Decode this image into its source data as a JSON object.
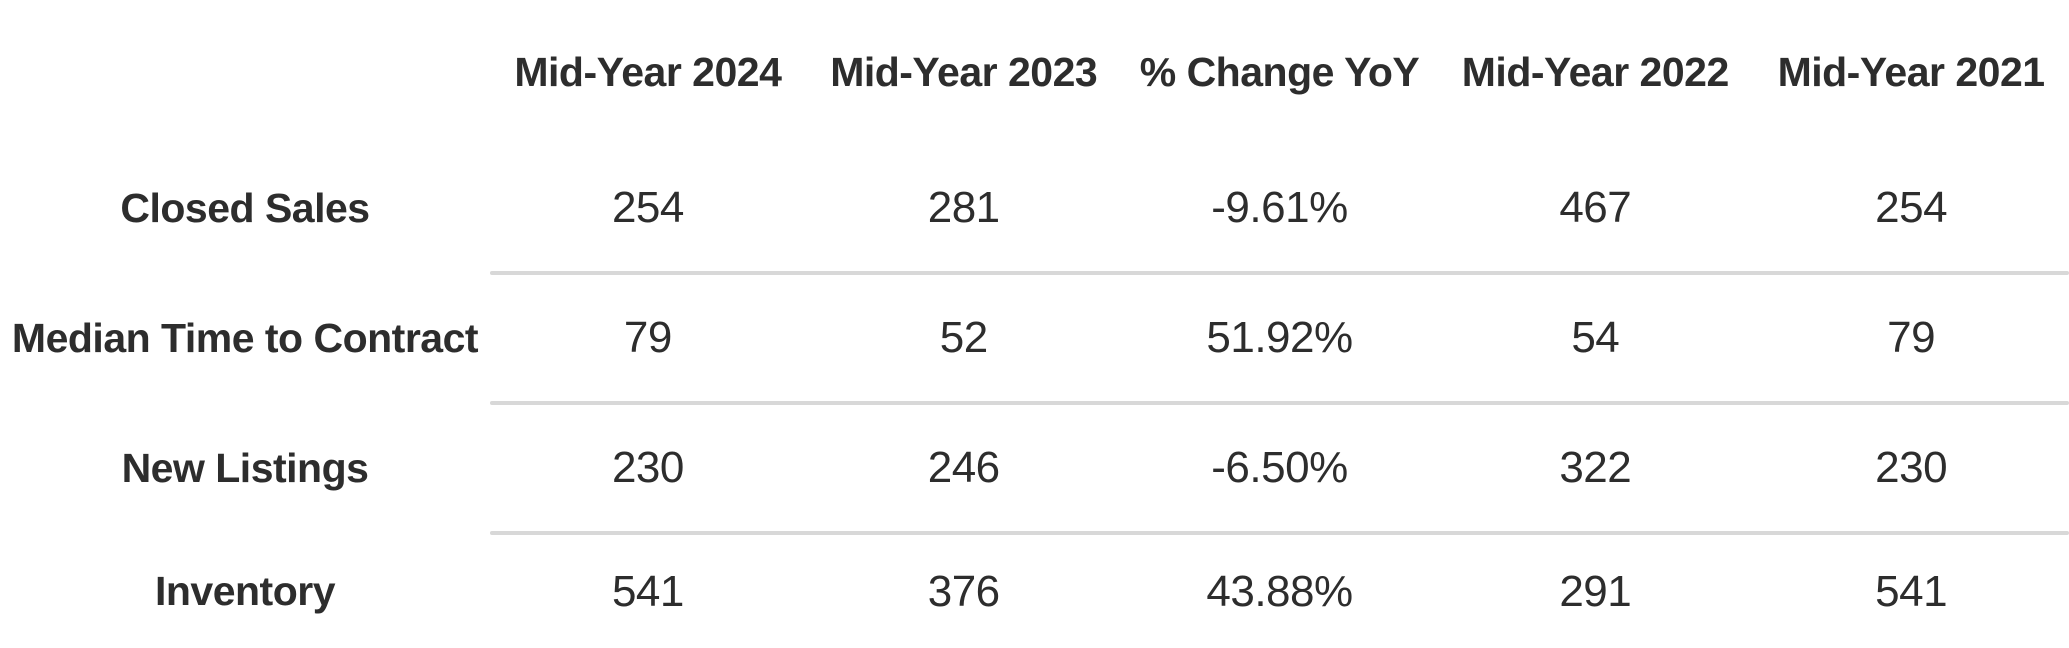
{
  "chart_data": {
    "type": "table",
    "columns": [
      "Mid-Year 2024",
      "Mid-Year 2023",
      "% Change YoY",
      "Mid-Year 2022",
      "Mid-Year 2021"
    ],
    "rows": [
      {
        "label": "Closed Sales",
        "values": [
          "254",
          "281",
          "-9.61%",
          "467",
          "254"
        ]
      },
      {
        "label": "Median Time to Contract",
        "values": [
          "79",
          "52",
          "51.92%",
          "54",
          "79"
        ]
      },
      {
        "label": "New Listings",
        "values": [
          "230",
          "246",
          "-6.50%",
          "322",
          "230"
        ]
      },
      {
        "label": "Inventory",
        "values": [
          "541",
          "376",
          "43.88%",
          "291",
          "541"
        ]
      }
    ]
  },
  "colors": {
    "text": "#2d2d2d",
    "divider": "#d8d8d8",
    "background": "#ffffff"
  }
}
